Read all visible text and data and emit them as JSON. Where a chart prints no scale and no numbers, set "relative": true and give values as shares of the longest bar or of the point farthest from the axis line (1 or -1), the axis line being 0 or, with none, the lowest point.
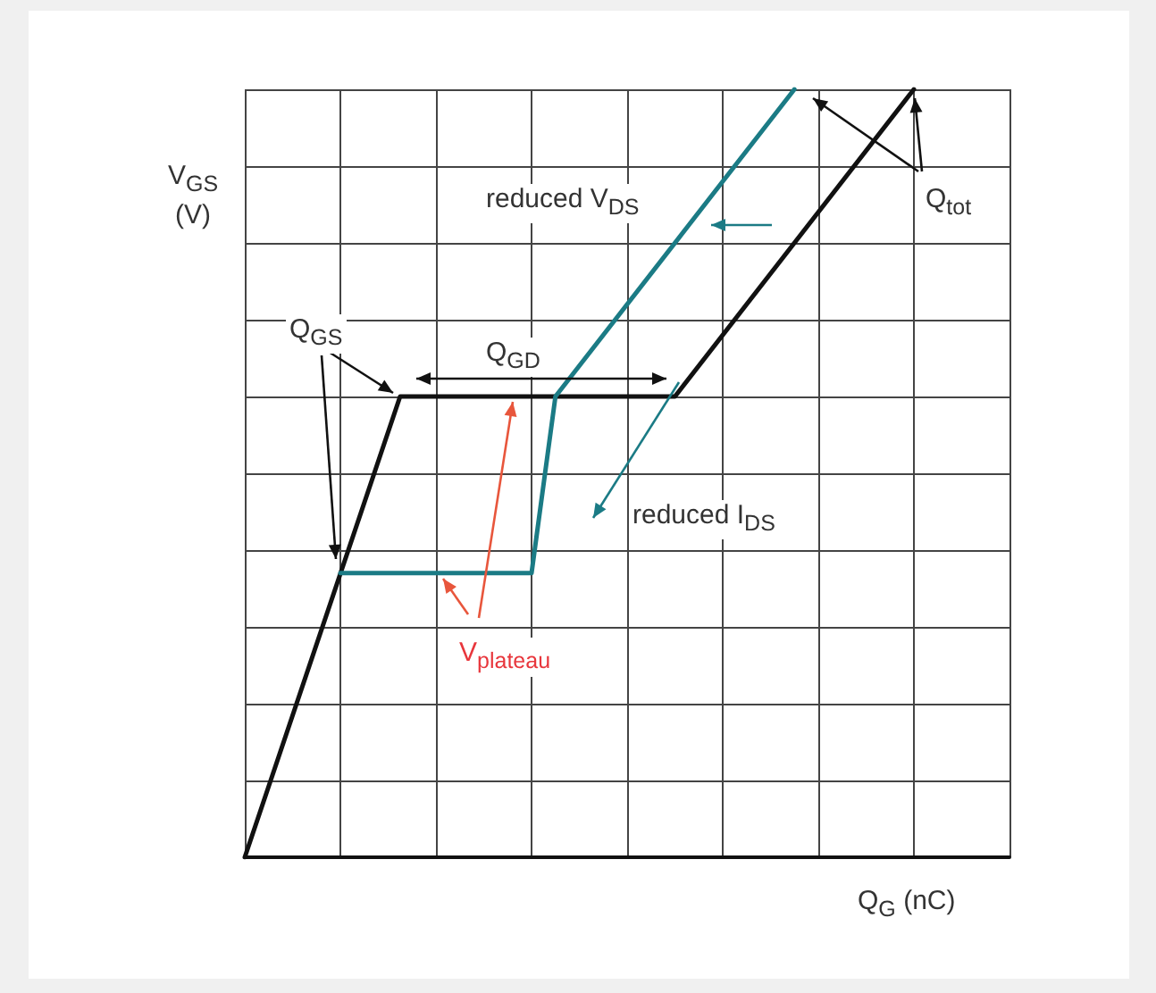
{
  "chart_data": {
    "type": "line",
    "relative": true,
    "xlabel": "Q$_{G}$ (nC)",
    "ylabel": "V$_{GS}$ (V)",
    "categories": [
      null,
      null,
      null,
      null,
      null,
      null,
      null,
      null,
      null,
      null,
      null,
      null,
      null,
      null,
      null,
      null,
      null,
      null,
      null,
      null,
      null,
      null,
      null,
      null,
      null,
      null,
      null,
      null,
      null,
      null,
      null,
      null,
      null,
      null,
      null,
      null,
      null,
      null,
      null,
      null,
      null,
      null,
      null,
      null,
      null,
      null,
      null,
      null,
      null,
      null,
      null,
      null,
      null,
      null,
      null,
      null,
      null,
      null,
      null,
      null,
      null,
      null,
      null,
      null,
      null
    ],
    "series": [
      {
        "color": "#111111",
        "values": [
          0,
          null,
          null,
          null,
          null,
          null,
          null,
          null,
          null,
          null,
          null,
          null,
          null,
          0.6,
          null,
          null,
          null,
          null,
          null,
          null,
          null,
          null,
          null,
          null,
          null,
          null,
          null,
          null,
          null,
          null,
          null,
          null,
          null,
          null,
          null,
          null,
          0.6,
          null,
          null,
          null,
          null,
          null,
          null,
          null,
          null,
          null,
          null,
          null,
          null,
          null,
          null,
          null,
          null,
          null,
          null,
          null,
          1,
          null,
          null,
          null,
          null,
          null,
          null,
          null,
          null
        ]
      },
      {
        "color": "#1b7b85",
        "values": [
          null,
          null,
          null,
          null,
          null,
          null,
          null,
          null,
          0.37,
          null,
          null,
          null,
          null,
          null,
          null,
          null,
          null,
          null,
          null,
          null,
          null,
          null,
          null,
          null,
          0.37,
          null,
          0.6,
          null,
          null,
          null,
          null,
          null,
          null,
          null,
          null,
          null,
          null,
          null,
          null,
          null,
          null,
          null,
          null,
          null,
          null,
          null,
          1,
          null,
          null,
          null,
          null,
          null,
          null,
          null,
          null,
          null,
          null,
          null,
          null,
          null,
          null,
          null,
          null,
          null,
          null
        ]
      }
    ],
    "annotations": [
      "Q$_{tot}$",
      "reduced V$_{DS}$",
      "Q$_{GS}$",
      "Q$_{GD}$",
      "reduced I$_{DS}$",
      "V$_{plateau}$"
    ],
    "grid": true,
    "line_style": "solid",
    "tick_labels": false
  }
}
